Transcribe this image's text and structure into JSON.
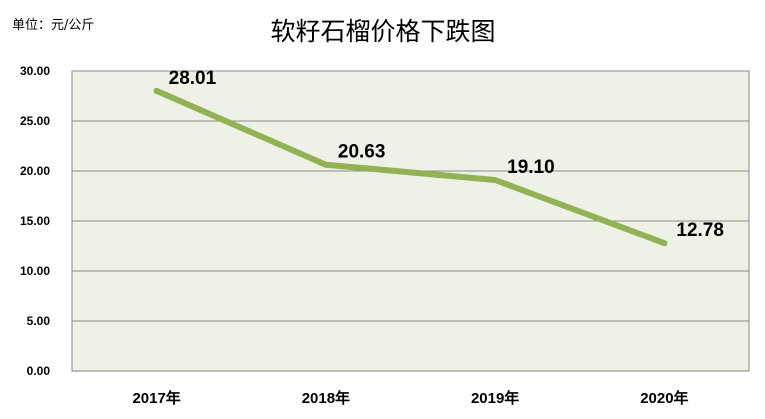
{
  "unit_label": "单位：元/公斤",
  "chart_data": {
    "type": "line",
    "title": "软籽石榴价格下跌图",
    "xlabel": "",
    "ylabel": "",
    "categories": [
      "2017年",
      "2018年",
      "2019年",
      "2020年"
    ],
    "series": [
      {
        "values": [
          28.01,
          20.63,
          19.1,
          12.78
        ],
        "data_labels": [
          "28.01",
          "20.63",
          "19.10",
          "12.78"
        ],
        "color": "#92b255"
      }
    ],
    "ylim": [
      0,
      30
    ],
    "y_ticks": [
      "0.00",
      "5.00",
      "10.00",
      "15.00",
      "20.00",
      "25.00",
      "30.00"
    ],
    "grid": true,
    "plot_background": "#eef2e6",
    "grid_color": "#8c8c8c",
    "legend": "none"
  }
}
